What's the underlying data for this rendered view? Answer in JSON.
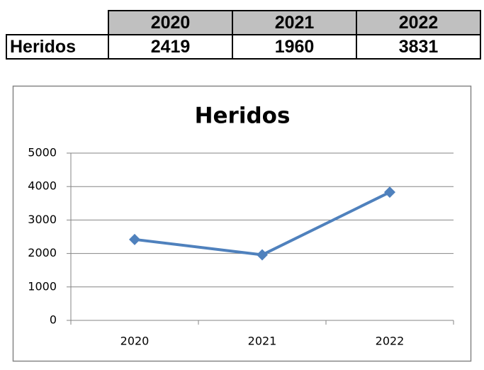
{
  "table": {
    "header": [
      "2020",
      "2021",
      "2022"
    ],
    "rows": [
      {
        "label": "Heridos",
        "values": [
          2419,
          1960,
          3831
        ]
      }
    ]
  },
  "chart_data": {
    "type": "line",
    "title": "Heridos",
    "categories": [
      "2020",
      "2021",
      "2022"
    ],
    "values": [
      2419,
      1960,
      3831
    ],
    "color": "#4f81bd",
    "ylim": [
      0,
      5000
    ],
    "yticks": [
      0,
      1000,
      2000,
      3000,
      4000,
      5000
    ],
    "grid": true
  }
}
